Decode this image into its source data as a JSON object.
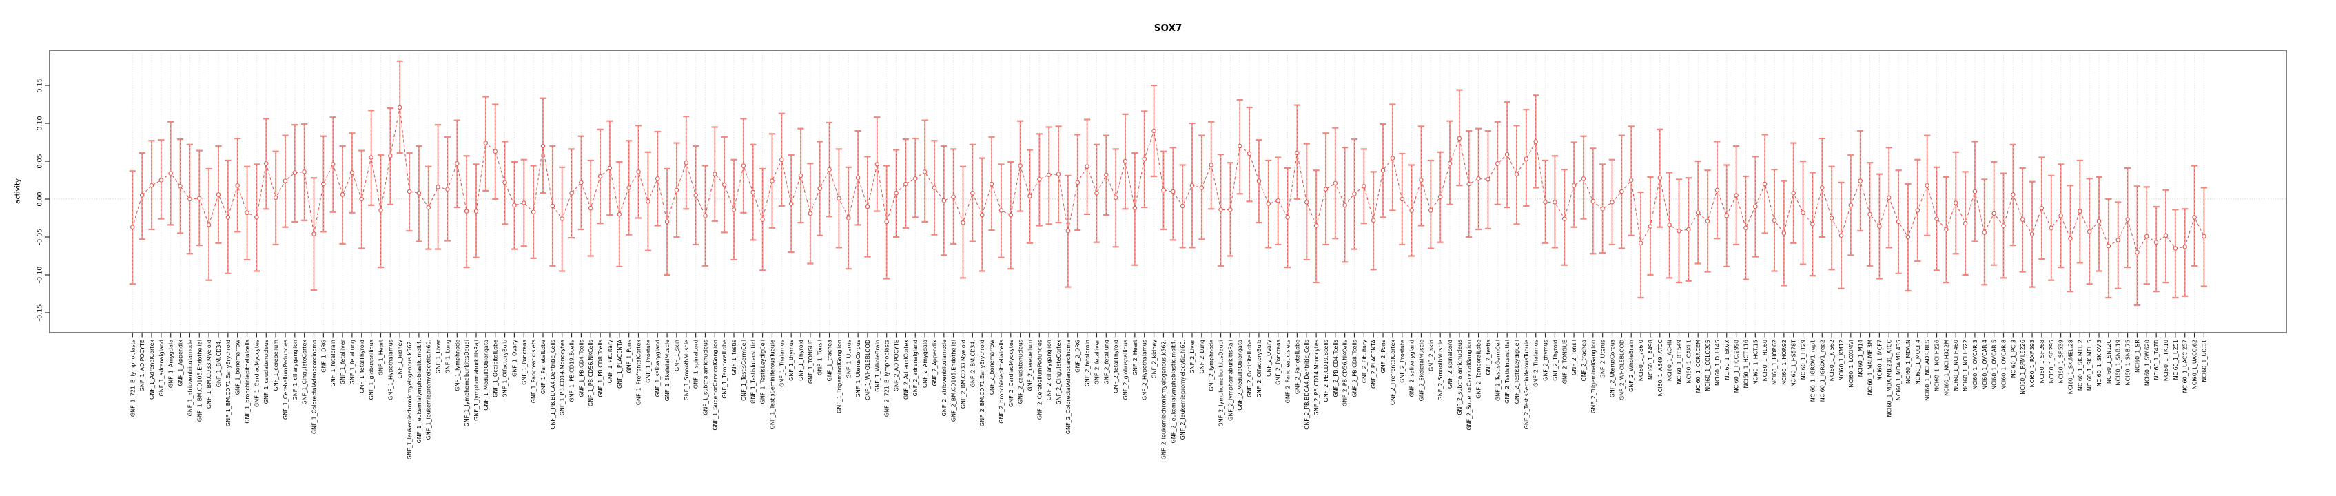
{
  "chart_data": {
    "type": "errorbar-line",
    "title": "SOX7",
    "xlabel": "",
    "ylabel": "activity",
    "ylim": [
      -0.176,
      0.196
    ],
    "yticks": [
      0.15,
      0.1,
      0.05,
      0.0,
      -0.05,
      -0.1,
      -0.15
    ],
    "ytick_labels": [
      "0.15",
      "0.10",
      "0.05",
      "0.00",
      "-0.05",
      "-0.10",
      "-0.15"
    ],
    "grid": "vertical-dotted-per-category",
    "zero_line": true,
    "legend": "none",
    "colors": {
      "bar": "#f5a09a",
      "cap": "#f08880",
      "line": "#e4564e",
      "marker": "#e4564e",
      "grid": "#dcdcdc",
      "zero": "#c8c8c8",
      "box": "#7f7f7f",
      "tick": "#303030",
      "text": "#000000",
      "background": "#ffffff"
    },
    "categories": [
      "GNF_1_721_B_lymphoblasts",
      "GNF_1_ADIPOCYTE",
      "GNF_1_AdrenalCortex",
      "GNF_1_adrenalgland",
      "GNF_1_Amygdala",
      "GNF_1_Appendix",
      "GNF_1_atrioventricularnode",
      "GNF_1_BM.CD105.Endothelial",
      "GNF_1_BM.CD33.Myeloid",
      "GNF_1_BM.CD34.",
      "GNF_1_BM.CD71.EarlyErythroid",
      "GNF_1_bonemarrow",
      "GNF_1_bronchialepithelialcells",
      "GNF_1_CardiacMyocytes",
      "GNF_1_caudatenucleus",
      "GNF_1_cerebellum",
      "GNF_1_CerebellumPeduncles",
      "GNF_1_ciliaryganglion",
      "GNF_1_CingulateCortex",
      "GNF_1_ColorectalAdenocarcinoma",
      "GNF_1_DRG",
      "GNF_1_fetalbrain",
      "GNF_1_fetalliver",
      "GNF_1_fetallung",
      "GNF_1_fetalThyroid",
      "GNF_1_globuspallidus",
      "GNF_1_Heart",
      "GNF_1_Hypothalamus",
      "GNF_1_kidney",
      "GNF_1_leukemiachronicmyelogenous.k562.",
      "GNF_1_leukemialymphoblastic.molt4.",
      "GNF_1_leukemiapromyelocytic.hl60.",
      "GNF_1_Liver",
      "GNF_1_Lung",
      "GNF_1_lymphnode",
      "GNF_1_lymphomaburkittsDaudi",
      "GNF_1_lymphomaburkittsRaji",
      "GNF_1_MedullaOblongata",
      "GNF_1_OccipitalLobe",
      "GNF_1_OlfactoryBulb",
      "GNF_1_Ovary",
      "GNF_1_Pancreas",
      "GNF_1_Pancreaticislets",
      "GNF_1_ParietalLobe",
      "GNF_1_PB.BDCA4.Dentritic_Cells",
      "GNF_1_PB.CD14.Monocytes",
      "GNF_1_PB.CD19.Bcells",
      "GNF_1_PB.CD4.Tcells",
      "GNF_1_PB.CD56.NKCells",
      "GNF_1_PB.CD8.Tcells",
      "GNF_1_Pituitary",
      "GNF_1_PLACENTA",
      "GNF_1_Pons",
      "GNF_1_PrefrontalCortex",
      "GNF_1_Prostate",
      "GNF_1_salivarygland",
      "GNF_1_SkeletalMuscle",
      "GNF_1_skin",
      "GNF_1_SmoothMuscle",
      "GNF_1_spinalcord",
      "GNF_1_subthalamicnucleus",
      "GNF_1_SuperiorCervicalGanglion",
      "GNF_1_TemporalLobe",
      "GNF_1_testis",
      "GNF_1_TestisGermCell",
      "GNF_1_TestisInterstitial",
      "GNF_1_TestisLeydigCell",
      "GNF_1_TestisSeminiferousTubule",
      "GNF_1_Thalamus",
      "GNF_1_thymus",
      "GNF_1_Thyroid",
      "GNF_1_TONGUE",
      "GNF_1_Tonsil",
      "GNF_1_trachea",
      "GNF_1_TrigeminalGanglion",
      "GNF_1_Uterus",
      "GNF_1_UterusCorpus",
      "GNF_1_WHOLEBLOOD",
      "GNF_1_WholeBrain",
      "GNF_2_721_B_lymphoblasts",
      "GNF_2_ADIPOCYTE",
      "GNF_2_AdrenalCortex",
      "GNF_2_adrenalgland",
      "GNF_2_Amygdala",
      "GNF_2_Appendix",
      "GNF_2_atrioventricularnode",
      "GNF_2_BM.CD105.Endothelial",
      "GNF_2_BM.CD33.Myeloid",
      "GNF_2_BM.CD34.",
      "GNF_2_BM.CD71.EarlyErythroid",
      "GNF_2_bonemarrow",
      "GNF_2_bronchialepithelialcells",
      "GNF_2_CardiacMyocytes",
      "GNF_2_caudatenucleus",
      "GNF_2_cerebellum",
      "GNF_2_CerebellumPeduncles",
      "GNF_2_ciliaryganglion",
      "GNF_2_CingulateCortex",
      "GNF_2_ColorectalAdenocarcinoma",
      "GNF_2_DRG",
      "GNF_2_fetalbrain",
      "GNF_2_fetalliver",
      "GNF_2_fetallung",
      "GNF_2_fetalThyroid",
      "GNF_2_globuspallidus",
      "GNF_2_Heart",
      "GNF_2_Hypothalamus",
      "GNF_2_kidney",
      "GNF_2_leukemiachronicmyelogenous.k562.",
      "GNF_2_leukemialymphoblastic.molt4.",
      "GNF_2_leukemiapromyelocytic.hl60.",
      "GNF_2_Liver",
      "GNF_2_Lung",
      "GNF_2_lymphnode",
      "GNF_2_lymphomaburkittsDaudi",
      "GNF_2_lymphomaburkittsRaji",
      "GNF_2_MedullaOblongata",
      "GNF_2_OccipitalLobe",
      "GNF_2_OlfactoryBulb",
      "GNF_2_Ovary",
      "GNF_2_Pancreas",
      "GNF_2_Pancreaticislets",
      "GNF_2_ParietalLobe",
      "GNF_2_PB.BDCA4.Dentritic_Cells",
      "GNF_2_PB.CD14.Monocytes",
      "GNF_2_PB.CD19.Bcells",
      "GNF_2_PB.CD4.Tcells",
      "GNF_2_PB.CD56.NKCells",
      "GNF_2_PB.CD8.Tcells",
      "GNF_2_Pituitary",
      "GNF_2_PLACENTA",
      "GNF_2_Pons",
      "GNF_2_PrefrontalCortex",
      "GNF_2_Prostate",
      "GNF_2_salivarygland",
      "GNF_2_SkeletalMuscle",
      "GNF_2_skin",
      "GNF_2_SmoothMuscle",
      "GNF_2_spinalcord",
      "GNF_2_subthalamicnucleus",
      "GNF_2_SuperiorCervicalGanglion",
      "GNF_2_TemporalLobe",
      "GNF_2_testis",
      "GNF_2_TestisGermCell",
      "GNF_2_TestisInterstitial",
      "GNF_2_TestisLeydigCell",
      "GNF_2_TestisSeminiferousTubule",
      "GNF_2_Thalamus",
      "GNF_2_thymus",
      "GNF_2_Thyroid",
      "GNF_2_TONGUE",
      "GNF_2_Tonsil",
      "GNF_2_trachea",
      "GNF_2_TrigeminalGanglion",
      "GNF_2_Uterus",
      "GNF_2_UterusCorpus",
      "GNF_2_WHOLEBLOOD",
      "GNF_2_WholeBrain",
      "NCI60_1_786.0",
      "NCI60_1_A498",
      "NCI60_1_A549_ATCC",
      "NCI60_1_ACHN",
      "NCI60_1_BT.549",
      "NCI60_1_CAKI.1",
      "NCI60_1_CCRF.CEM",
      "NCI60_1_COLO205",
      "NCI60_1_DU.145",
      "NCI60_1_EKVX",
      "NCI60_1_HCC.2998",
      "NCI60_1_HCT.116",
      "NCI60_1_HCT.15",
      "NCI60_1_HL.60",
      "NCI60_1_HOP.62",
      "NCI60_1_HOP.92",
      "NCI60_1_HS578T",
      "NCI60_1_HT29",
      "NCI60_1_IGROV1_rep1",
      "NCI60_1_IGROV1_rep2",
      "NCI60_1_K.562",
      "NCI60_1_KM12",
      "NCI60_1_LOXIMVI",
      "NCI60_1_M14",
      "NCI60_1_MALME.3M",
      "NCI60_1_MCF7",
      "NCI60_1_MDA.MB.231_ATCC",
      "NCI60_1_MDA.MB.435",
      "NCI60_1_MDA.N",
      "NCI60_1_MOLT.4",
      "NCI60_1_NCI.ADR.RES",
      "NCI60_1_NCI.H226",
      "NCI60_1_NCI.H322M",
      "NCI60_1_NCI.H460",
      "NCI60_1_NCI.H522",
      "NCI60_1_OVCAR.3",
      "NCI60_1_OVCAR.4",
      "NCI60_1_OVCAR.5",
      "NCI60_1_OVCAR.8",
      "NCI60_1_PC.3",
      "NCI60_1_RPMI.8226",
      "NCI60_1_RXF.393",
      "NCI60_1_SF.268",
      "NCI60_1_SF.295",
      "NCI60_1_SF.539",
      "NCI60_1_SK.MEL.28",
      "NCI60_1_SK.MEL.2",
      "NCI60_1_SK.MEL.5",
      "NCI60_1_SK.OV.3",
      "NCI60_1_SN12C",
      "NCI60_1_SNB.19",
      "NCI60_1_SNB.75",
      "NCI60_1_SR",
      "NCI60_1_SW.620",
      "NCI60_1_T47D",
      "NCI60_1_TK.10",
      "NCI60_1_U251",
      "NCI60_1_UACC.257",
      "NCI60_1_UACC.62",
      "NCI60_1_UO.31"
    ],
    "series": [
      {
        "name": "activity",
        "values": [
          -0.037,
          0.005,
          0.018,
          0.025,
          0.034,
          0.017,
          0.0,
          0.001,
          -0.034,
          0.006,
          -0.024,
          0.018,
          -0.018,
          -0.024,
          0.047,
          0.002,
          0.024,
          0.035,
          0.036,
          -0.046,
          0.02,
          0.046,
          0.006,
          0.035,
          0.0,
          0.055,
          -0.015,
          0.057,
          0.121,
          0.01,
          0.008,
          -0.011,
          0.016,
          0.013,
          0.047,
          -0.016,
          -0.016,
          0.074,
          0.063,
          0.022,
          -0.008,
          -0.005,
          -0.017,
          0.07,
          -0.009,
          -0.026,
          0.008,
          0.022,
          -0.012,
          0.03,
          0.041,
          -0.02,
          0.015,
          0.036,
          -0.003,
          0.027,
          -0.03,
          0.012,
          0.048,
          0.005,
          -0.022,
          0.033,
          0.019,
          -0.014,
          0.044,
          0.009,
          -0.027,
          0.024,
          0.052,
          -0.006,
          0.031,
          -0.019,
          0.014,
          0.039,
          0.001,
          -0.025,
          0.028,
          -0.01,
          0.046,
          -0.03,
          0.008,
          0.02,
          0.027,
          0.036,
          0.015,
          -0.002,
          0.003,
          -0.031,
          0.008,
          -0.021,
          0.02,
          -0.015,
          -0.021,
          0.044,
          0.004,
          0.026,
          0.032,
          0.033,
          -0.042,
          0.022,
          0.043,
          0.008,
          0.032,
          0.002,
          0.05,
          -0.012,
          0.053,
          0.09,
          0.012,
          0.01,
          -0.009,
          0.018,
          0.015,
          0.045,
          -0.014,
          -0.014,
          0.07,
          0.06,
          0.024,
          -0.006,
          -0.002,
          -0.024,
          0.061,
          -0.004,
          -0.035,
          0.013,
          0.021,
          -0.008,
          0.007,
          0.017,
          -0.028,
          0.038,
          0.054,
          0.0,
          -0.015,
          0.025,
          -0.015,
          0.003,
          0.047,
          0.08,
          0.02,
          0.027,
          0.026,
          0.047,
          0.059,
          0.033,
          0.053,
          0.076,
          -0.004,
          -0.004,
          -0.026,
          0.018,
          0.027,
          -0.003,
          -0.013,
          -0.004,
          0.01,
          0.025,
          -0.058,
          -0.036,
          0.028,
          -0.034,
          -0.042,
          -0.04,
          -0.018,
          -0.029,
          0.012,
          -0.022,
          0.005,
          -0.038,
          -0.01,
          0.02,
          -0.028,
          -0.045,
          0.008,
          -0.018,
          -0.033,
          0.015,
          -0.025,
          -0.048,
          -0.008,
          0.024,
          -0.02,
          -0.036,
          0.002,
          -0.03,
          -0.05,
          -0.015,
          0.018,
          -0.026,
          -0.04,
          -0.005,
          -0.032,
          0.01,
          -0.044,
          -0.019,
          -0.035,
          0.006,
          -0.027,
          -0.046,
          -0.012,
          -0.038,
          -0.022,
          -0.052,
          -0.016,
          -0.043,
          -0.029,
          -0.062,
          -0.054,
          -0.027,
          -0.07,
          -0.049,
          -0.057,
          -0.048,
          -0.065,
          -0.063,
          -0.024,
          -0.049
        ],
        "ci_low": [
          -0.112,
          -0.053,
          -0.04,
          -0.026,
          -0.034,
          -0.045,
          -0.072,
          -0.061,
          -0.107,
          -0.058,
          -0.098,
          -0.043,
          -0.08,
          -0.095,
          -0.013,
          -0.06,
          -0.037,
          -0.03,
          -0.028,
          -0.12,
          -0.043,
          -0.017,
          -0.059,
          -0.018,
          -0.065,
          -0.008,
          -0.09,
          -0.007,
          0.061,
          -0.042,
          -0.056,
          -0.066,
          -0.066,
          -0.055,
          -0.011,
          -0.09,
          -0.077,
          0.011,
          0.0,
          -0.033,
          -0.066,
          -0.062,
          -0.078,
          0.008,
          -0.088,
          -0.095,
          -0.051,
          -0.04,
          -0.075,
          -0.032,
          -0.021,
          -0.089,
          -0.047,
          -0.025,
          -0.068,
          -0.035,
          -0.1,
          -0.05,
          -0.013,
          -0.06,
          -0.088,
          -0.029,
          -0.044,
          -0.08,
          -0.018,
          -0.054,
          -0.094,
          -0.038,
          -0.009,
          -0.07,
          -0.031,
          -0.085,
          -0.048,
          -0.023,
          -0.064,
          -0.092,
          -0.034,
          -0.076,
          -0.016,
          -0.105,
          -0.05,
          -0.038,
          -0.024,
          -0.03,
          -0.047,
          -0.074,
          -0.059,
          -0.104,
          -0.056,
          -0.095,
          -0.041,
          -0.077,
          -0.092,
          -0.016,
          -0.058,
          -0.035,
          -0.033,
          -0.031,
          -0.116,
          -0.041,
          -0.02,
          -0.057,
          -0.021,
          -0.063,
          -0.013,
          -0.087,
          -0.011,
          0.03,
          -0.04,
          -0.054,
          -0.064,
          -0.064,
          -0.053,
          -0.013,
          -0.088,
          -0.075,
          0.007,
          -0.003,
          -0.031,
          -0.064,
          -0.06,
          -0.09,
          0.0,
          -0.08,
          -0.11,
          -0.06,
          -0.052,
          -0.083,
          -0.066,
          -0.032,
          -0.093,
          -0.024,
          -0.015,
          -0.06,
          -0.075,
          -0.035,
          -0.065,
          -0.057,
          -0.007,
          0.018,
          -0.05,
          -0.04,
          -0.039,
          -0.007,
          -0.011,
          -0.033,
          -0.009,
          0.015,
          -0.058,
          -0.064,
          -0.087,
          -0.037,
          -0.026,
          -0.072,
          -0.071,
          -0.06,
          -0.065,
          -0.048,
          -0.13,
          -0.1,
          -0.037,
          -0.104,
          -0.11,
          -0.108,
          -0.085,
          -0.096,
          -0.052,
          -0.089,
          -0.06,
          -0.106,
          -0.076,
          -0.045,
          -0.095,
          -0.114,
          -0.058,
          -0.086,
          -0.101,
          -0.05,
          -0.093,
          -0.118,
          -0.074,
          -0.042,
          -0.088,
          -0.105,
          -0.064,
          -0.098,
          -0.121,
          -0.082,
          -0.048,
          -0.094,
          -0.11,
          -0.072,
          -0.1,
          -0.056,
          -0.113,
          -0.087,
          -0.104,
          -0.061,
          -0.096,
          -0.116,
          -0.079,
          -0.107,
          -0.09,
          -0.122,
          -0.084,
          -0.112,
          -0.095,
          -0.13,
          -0.118,
          -0.09,
          -0.14,
          -0.112,
          -0.122,
          -0.11,
          -0.13,
          -0.128,
          -0.088,
          -0.115
        ],
        "ci_high": [
          0.037,
          0.061,
          0.077,
          0.078,
          0.102,
          0.079,
          0.072,
          0.064,
          0.04,
          0.07,
          0.051,
          0.08,
          0.043,
          0.046,
          0.106,
          0.063,
          0.084,
          0.098,
          0.099,
          0.028,
          0.083,
          0.108,
          0.07,
          0.087,
          0.064,
          0.117,
          0.058,
          0.12,
          0.182,
          0.061,
          0.07,
          0.043,
          0.098,
          0.082,
          0.104,
          0.057,
          0.046,
          0.135,
          0.125,
          0.076,
          0.049,
          0.052,
          0.044,
          0.133,
          0.07,
          0.042,
          0.066,
          0.083,
          0.051,
          0.092,
          0.103,
          0.049,
          0.077,
          0.097,
          0.062,
          0.089,
          0.04,
          0.074,
          0.109,
          0.07,
          0.044,
          0.095,
          0.082,
          0.052,
          0.106,
          0.072,
          0.04,
          0.086,
          0.113,
          0.058,
          0.093,
          0.047,
          0.076,
          0.101,
          0.066,
          0.042,
          0.09,
          0.056,
          0.108,
          0.044,
          0.065,
          0.079,
          0.08,
          0.104,
          0.077,
          0.07,
          0.066,
          0.043,
          0.072,
          0.054,
          0.082,
          0.046,
          0.049,
          0.103,
          0.065,
          0.086,
          0.095,
          0.096,
          0.031,
          0.085,
          0.105,
          0.072,
          0.084,
          0.066,
          0.112,
          0.061,
          0.116,
          0.15,
          0.063,
          0.068,
          0.045,
          0.1,
          0.084,
          0.102,
          0.059,
          0.048,
          0.131,
          0.121,
          0.078,
          0.051,
          0.055,
          0.041,
          0.124,
          0.073,
          0.038,
          0.087,
          0.094,
          0.068,
          0.079,
          0.066,
          0.036,
          0.099,
          0.125,
          0.06,
          0.045,
          0.096,
          0.051,
          0.062,
          0.103,
          0.144,
          0.09,
          0.093,
          0.09,
          0.102,
          0.128,
          0.097,
          0.118,
          0.137,
          0.051,
          0.057,
          0.039,
          0.075,
          0.083,
          0.067,
          0.046,
          0.052,
          0.084,
          0.096,
          0.009,
          0.029,
          0.092,
          0.035,
          0.026,
          0.028,
          0.05,
          0.038,
          0.076,
          0.045,
          0.07,
          0.03,
          0.056,
          0.085,
          0.039,
          0.024,
          0.074,
          0.05,
          0.035,
          0.08,
          0.043,
          0.022,
          0.058,
          0.09,
          0.048,
          0.033,
          0.068,
          0.038,
          0.02,
          0.052,
          0.084,
          0.042,
          0.029,
          0.062,
          0.036,
          0.076,
          0.026,
          0.049,
          0.034,
          0.072,
          0.041,
          0.023,
          0.055,
          0.031,
          0.046,
          0.018,
          0.051,
          0.027,
          0.029,
          0.0,
          -0.004,
          0.041,
          0.017,
          0.016,
          -0.01,
          0.012,
          -0.014,
          -0.013,
          0.044,
          0.015
        ]
      }
    ]
  }
}
